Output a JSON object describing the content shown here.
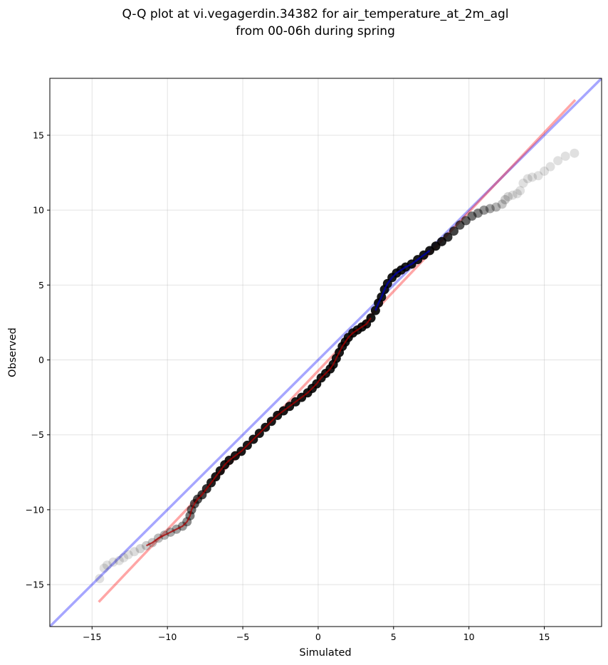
{
  "chart_data": {
    "type": "scatter",
    "title": "Q-Q plot at vi.vegagerdin.34382 for air_temperature_at_2m_agl",
    "subtitle": "from 00-06h during spring",
    "xlabel": "Simulated",
    "ylabel": "Observed",
    "xlim": [
      -17.8,
      18.8
    ],
    "ylim": [
      -17.8,
      18.8
    ],
    "xticks": [
      -15,
      -10,
      -5,
      0,
      5,
      10,
      15
    ],
    "yticks": [
      -15,
      -10,
      -5,
      0,
      5,
      10,
      15
    ],
    "xtick_labels": [
      "−15",
      "−10",
      "−5",
      "0",
      "5",
      "10",
      "15"
    ],
    "ytick_labels": [
      "−15",
      "−10",
      "−5",
      "0",
      "5",
      "10",
      "15"
    ],
    "grid": true,
    "quantile_points": [
      [
        -14.5,
        -14.6
      ],
      [
        -14.2,
        -13.9
      ],
      [
        -14.0,
        -13.7
      ],
      [
        -13.6,
        -13.5
      ],
      [
        -13.2,
        -13.4
      ],
      [
        -12.9,
        -13.2
      ],
      [
        -12.6,
        -13.0
      ],
      [
        -12.2,
        -12.8
      ],
      [
        -11.8,
        -12.6
      ],
      [
        -11.4,
        -12.4
      ],
      [
        -11.0,
        -12.2
      ],
      [
        -10.6,
        -11.9
      ],
      [
        -10.2,
        -11.7
      ],
      [
        -9.8,
        -11.5
      ],
      [
        -9.4,
        -11.3
      ],
      [
        -9.0,
        -11.1
      ],
      [
        -8.7,
        -10.8
      ],
      [
        -8.5,
        -10.4
      ],
      [
        -8.4,
        -10.0
      ],
      [
        -8.2,
        -9.6
      ],
      [
        -8.0,
        -9.3
      ],
      [
        -7.7,
        -9.0
      ],
      [
        -7.4,
        -8.6
      ],
      [
        -7.1,
        -8.2
      ],
      [
        -6.8,
        -7.8
      ],
      [
        -6.5,
        -7.4
      ],
      [
        -6.2,
        -7.0
      ],
      [
        -5.9,
        -6.7
      ],
      [
        -5.5,
        -6.4
      ],
      [
        -5.1,
        -6.1
      ],
      [
        -4.7,
        -5.7
      ],
      [
        -4.3,
        -5.3
      ],
      [
        -3.9,
        -4.9
      ],
      [
        -3.5,
        -4.5
      ],
      [
        -3.1,
        -4.1
      ],
      [
        -2.7,
        -3.7
      ],
      [
        -2.3,
        -3.4
      ],
      [
        -1.9,
        -3.1
      ],
      [
        -1.5,
        -2.8
      ],
      [
        -1.1,
        -2.5
      ],
      [
        -0.7,
        -2.2
      ],
      [
        -0.4,
        -1.9
      ],
      [
        -0.1,
        -1.6
      ],
      [
        0.2,
        -1.2
      ],
      [
        0.5,
        -0.9
      ],
      [
        0.8,
        -0.6
      ],
      [
        1.0,
        -0.3
      ],
      [
        1.2,
        0.1
      ],
      [
        1.4,
        0.5
      ],
      [
        1.6,
        0.9
      ],
      [
        1.8,
        1.2
      ],
      [
        2.0,
        1.5
      ],
      [
        2.3,
        1.8
      ],
      [
        2.6,
        2.0
      ],
      [
        2.9,
        2.2
      ],
      [
        3.2,
        2.4
      ],
      [
        3.5,
        2.8
      ],
      [
        3.8,
        3.3
      ],
      [
        4.0,
        3.8
      ],
      [
        4.2,
        4.2
      ],
      [
        4.4,
        4.7
      ],
      [
        4.6,
        5.1
      ],
      [
        4.9,
        5.5
      ],
      [
        5.2,
        5.8
      ],
      [
        5.5,
        6.0
      ],
      [
        5.8,
        6.2
      ],
      [
        6.2,
        6.4
      ],
      [
        6.6,
        6.7
      ],
      [
        7.0,
        7.0
      ],
      [
        7.4,
        7.3
      ],
      [
        7.8,
        7.6
      ],
      [
        8.2,
        7.9
      ],
      [
        8.6,
        8.2
      ],
      [
        9.0,
        8.6
      ],
      [
        9.4,
        9.0
      ],
      [
        9.8,
        9.3
      ],
      [
        10.2,
        9.6
      ],
      [
        10.6,
        9.8
      ],
      [
        11.0,
        10.0
      ],
      [
        11.4,
        10.1
      ],
      [
        11.8,
        10.2
      ],
      [
        12.2,
        10.4
      ],
      [
        12.4,
        10.7
      ],
      [
        12.6,
        10.9
      ],
      [
        12.9,
        11.0
      ],
      [
        13.2,
        11.1
      ],
      [
        13.4,
        11.3
      ],
      [
        13.6,
        11.8
      ],
      [
        13.9,
        12.1
      ],
      [
        14.2,
        12.2
      ],
      [
        14.6,
        12.3
      ],
      [
        15.0,
        12.6
      ],
      [
        15.4,
        12.9
      ],
      [
        15.9,
        13.3
      ],
      [
        16.4,
        13.6
      ],
      [
        17.0,
        13.8
      ]
    ],
    "fit_line": [
      [
        -14.5,
        -16.1
      ],
      [
        17.0,
        17.3
      ]
    ],
    "identity_line": [
      [
        -17.8,
        -17.8
      ],
      [
        18.8,
        18.8
      ]
    ],
    "colors": {
      "points": "#000000",
      "fit_line": "#ff0000",
      "identity_line": "#0000ff",
      "dense_overlay_blue": "#0000aa",
      "dense_overlay_red": "#aa0000"
    }
  }
}
